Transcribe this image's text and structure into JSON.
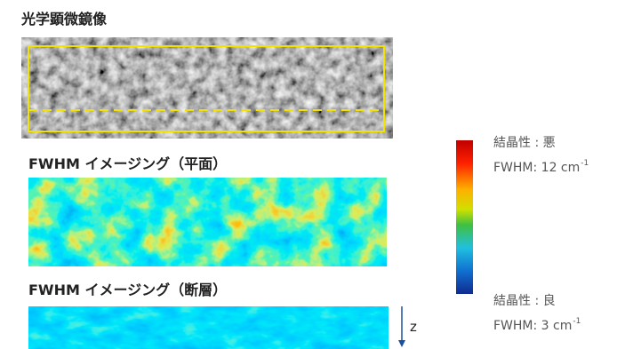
{
  "panels": [
    {
      "title": "光学顕微鏡像"
    },
    {
      "title": "FWHM イメージング（平面）"
    },
    {
      "title": "FWHM イメージング（断層）",
      "axis_label": "z"
    }
  ],
  "colorbar": {
    "top": {
      "label": "結晶性 : 悪",
      "value": "FWHM: 12 cm",
      "exponent": "-1"
    },
    "bottom": {
      "label": "結晶性 : 良",
      "value": "FWHM: 3 cm",
      "exponent": "-1"
    }
  }
}
